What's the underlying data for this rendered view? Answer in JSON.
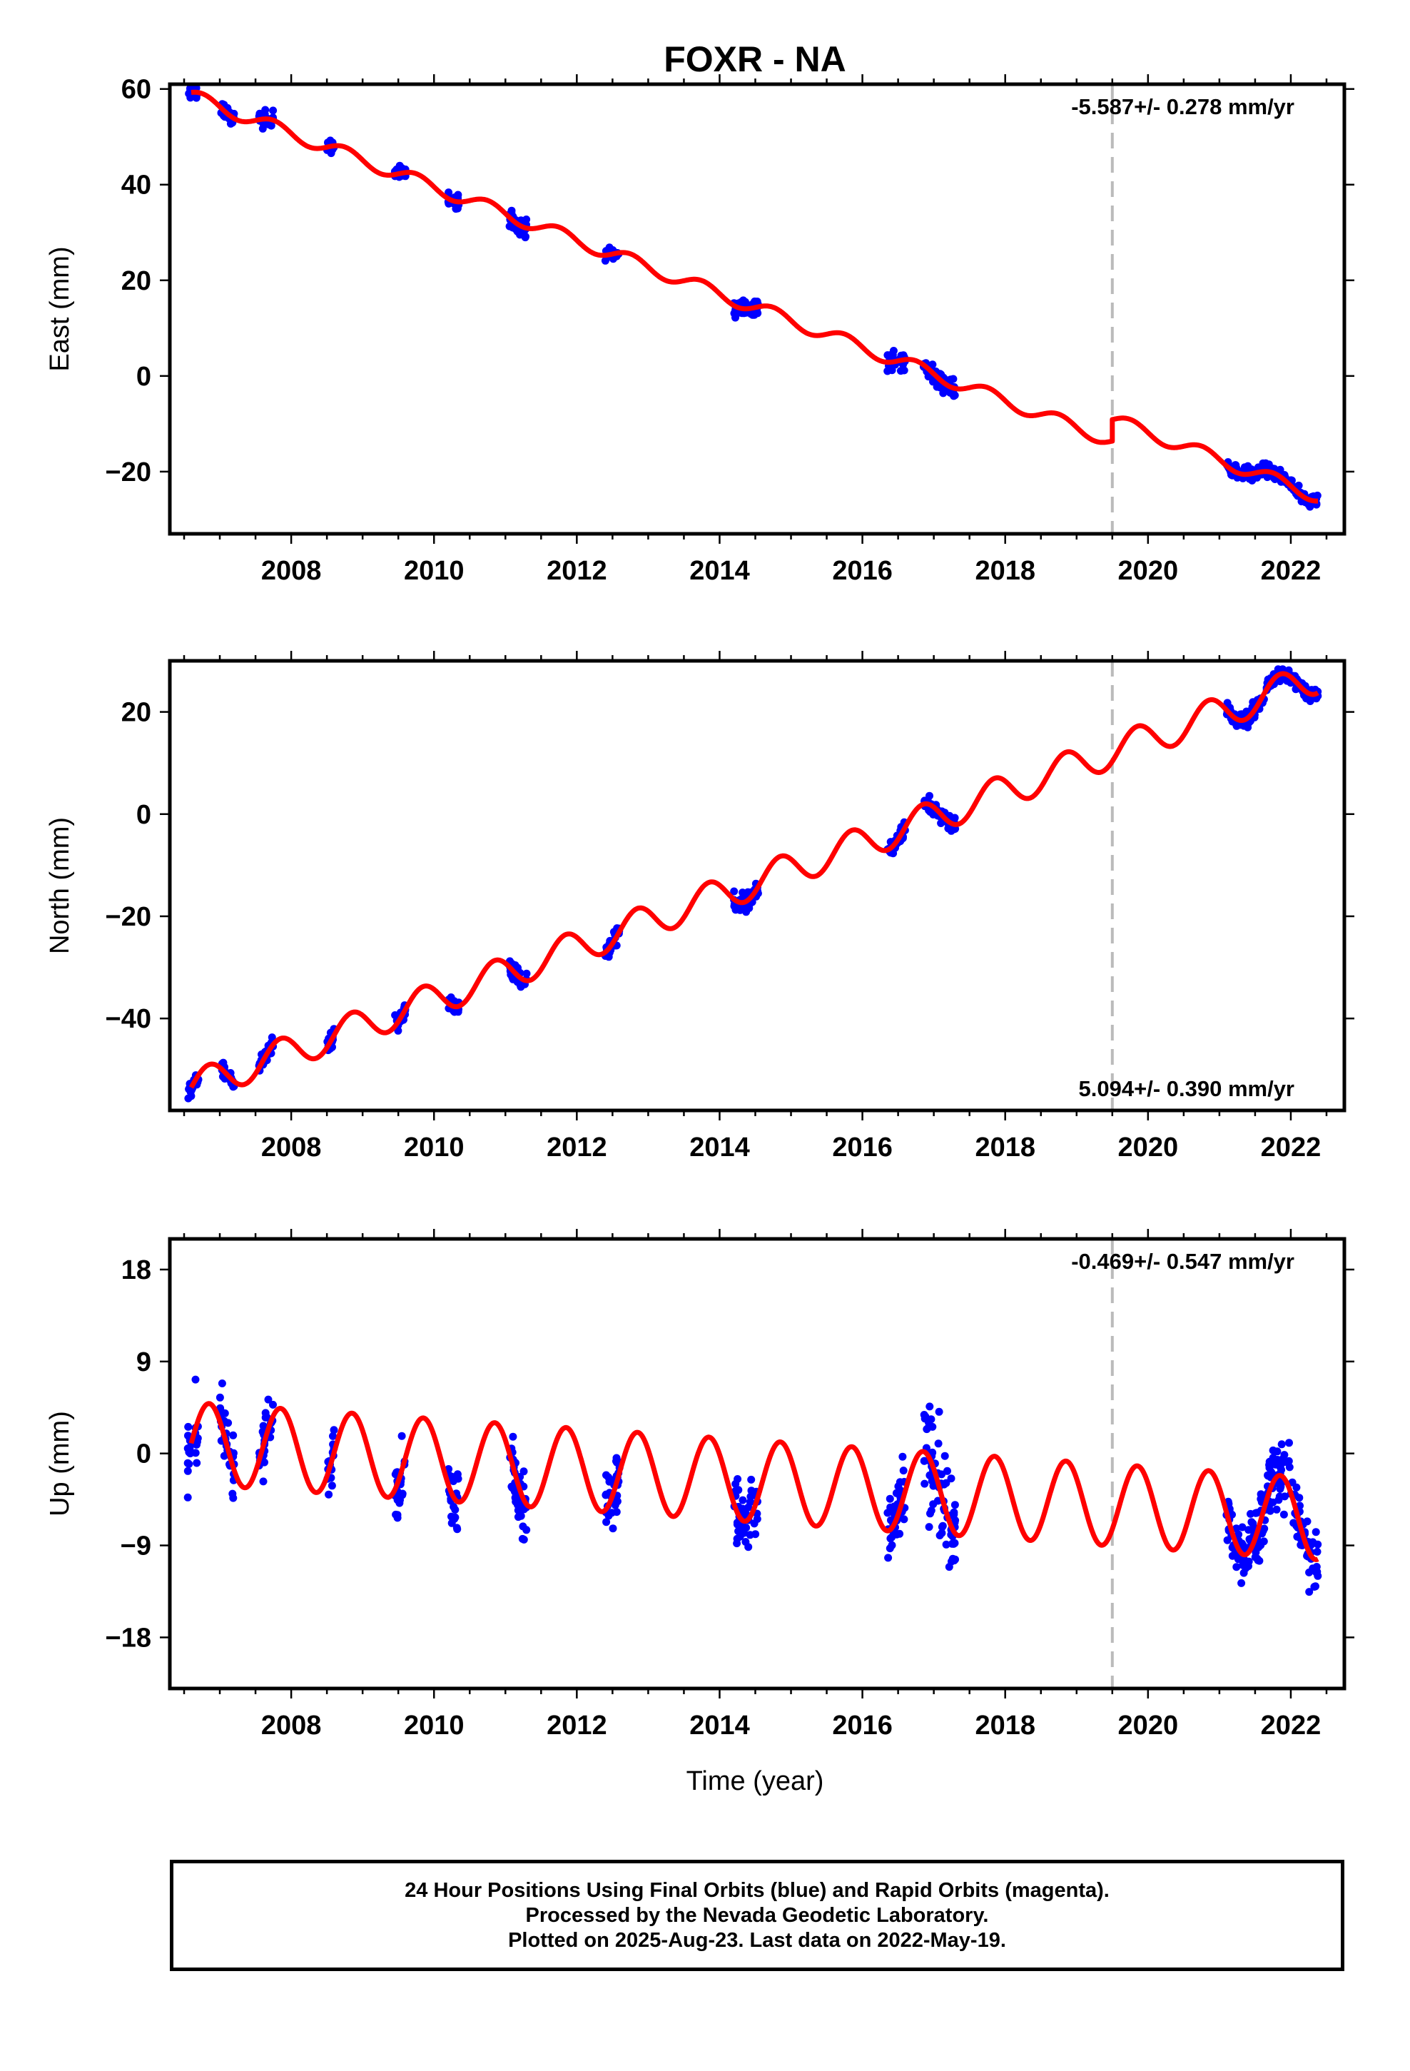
{
  "title": "FOXR - NA",
  "xlabel": "Time (year)",
  "footer": {
    "line1": "24 Hour Positions Using Final Orbits (blue) and Rapid Orbits (magenta).",
    "line2": "Processed by the Nevada Geodetic Laboratory.",
    "line3": "Plotted on 2025-Aug-23. Last data on 2022-May-19."
  },
  "colors": {
    "data": "#0000ff",
    "model": "#ff0000",
    "break_line": "#bbbbbb"
  },
  "chart_data": [
    {
      "type": "scatter",
      "panel": "east",
      "ylabel": "East (mm)",
      "rate_label": "-5.587+/- 0.278 mm/yr",
      "xlim": [
        2006.3,
        2022.75
      ],
      "ylim": [
        -33,
        61
      ],
      "yticks": [
        -20,
        0,
        20,
        40,
        60
      ],
      "xticks": [
        2008,
        2010,
        2012,
        2014,
        2016,
        2018,
        2020,
        2022
      ],
      "break_year": 2019.5,
      "model": {
        "rate": -5.587,
        "y_at_2006_6": 58.5,
        "annual_amp": 1.4,
        "annual_phase": 0.6,
        "step_at_break": 4.5
      },
      "observation_windows": [
        {
          "start": 2006.55,
          "end": 2006.7,
          "spread": 2.0
        },
        {
          "start": 2007.0,
          "end": 2007.2,
          "spread": 2.0
        },
        {
          "start": 2007.55,
          "end": 2007.75,
          "spread": 2.5
        },
        {
          "start": 2008.5,
          "end": 2008.6,
          "spread": 2.0
        },
        {
          "start": 2009.45,
          "end": 2009.6,
          "spread": 2.0
        },
        {
          "start": 2010.2,
          "end": 2010.35,
          "spread": 2.5
        },
        {
          "start": 2011.05,
          "end": 2011.3,
          "spread": 2.5
        },
        {
          "start": 2012.4,
          "end": 2012.6,
          "spread": 2.0
        },
        {
          "start": 2014.2,
          "end": 2014.55,
          "spread": 3.0
        },
        {
          "start": 2016.35,
          "end": 2016.6,
          "spread": 2.5
        },
        {
          "start": 2016.85,
          "end": 2017.3,
          "spread": 3.0
        },
        {
          "start": 2021.1,
          "end": 2022.38,
          "spread": 2.0
        }
      ]
    },
    {
      "type": "scatter",
      "panel": "north",
      "ylabel": "North (mm)",
      "rate_label": "5.094+/- 0.390 mm/yr",
      "xlim": [
        2006.3,
        2022.75
      ],
      "ylim": [
        -58,
        30
      ],
      "yticks": [
        -40,
        -20,
        0,
        20
      ],
      "xticks": [
        2008,
        2010,
        2012,
        2014,
        2016,
        2018,
        2020,
        2022
      ],
      "break_year": 2019.5,
      "model": {
        "rate": 5.094,
        "y_at_2006_6": -53.5,
        "annual_amp": 3.2,
        "annual_phase": 0.0,
        "step_at_break": 0.0
      },
      "observation_windows": [
        {
          "start": 2006.55,
          "end": 2006.7,
          "spread": 2.5
        },
        {
          "start": 2007.0,
          "end": 2007.2,
          "spread": 2.0
        },
        {
          "start": 2007.55,
          "end": 2007.75,
          "spread": 2.5
        },
        {
          "start": 2008.5,
          "end": 2008.6,
          "spread": 2.0
        },
        {
          "start": 2009.45,
          "end": 2009.6,
          "spread": 2.5
        },
        {
          "start": 2010.2,
          "end": 2010.35,
          "spread": 2.0
        },
        {
          "start": 2011.05,
          "end": 2011.3,
          "spread": 2.5
        },
        {
          "start": 2012.4,
          "end": 2012.6,
          "spread": 2.5
        },
        {
          "start": 2014.2,
          "end": 2014.55,
          "spread": 2.5
        },
        {
          "start": 2016.35,
          "end": 2016.6,
          "spread": 2.5
        },
        {
          "start": 2016.85,
          "end": 2017.3,
          "spread": 2.5
        },
        {
          "start": 2021.1,
          "end": 2022.38,
          "spread": 2.0
        }
      ]
    },
    {
      "type": "scatter",
      "panel": "up",
      "ylabel": "Up (mm)",
      "rate_label": "-0.469+/- 0.547 mm/yr",
      "xlim": [
        2006.3,
        2022.75
      ],
      "ylim": [
        -23,
        21
      ],
      "yticks": [
        -18,
        -9,
        0,
        9,
        18
      ],
      "xticks": [
        2008,
        2010,
        2012,
        2014,
        2016,
        2018,
        2020,
        2022
      ],
      "break_year": 2019.5,
      "model": {
        "rate": -0.469,
        "y_at_2006_6": 1.0,
        "annual_amp": 4.0,
        "annual_phase": 0.0,
        "step_at_break": 0.0
      },
      "observation_windows": [
        {
          "start": 2006.55,
          "end": 2006.7,
          "spread": 5.0
        },
        {
          "start": 2007.0,
          "end": 2007.2,
          "spread": 5.0
        },
        {
          "start": 2007.55,
          "end": 2007.75,
          "spread": 4.0
        },
        {
          "start": 2008.5,
          "end": 2008.6,
          "spread": 4.0
        },
        {
          "start": 2009.45,
          "end": 2009.6,
          "spread": 4.0
        },
        {
          "start": 2010.2,
          "end": 2010.35,
          "spread": 4.5
        },
        {
          "start": 2011.05,
          "end": 2011.3,
          "spread": 5.0
        },
        {
          "start": 2012.4,
          "end": 2012.6,
          "spread": 5.0
        },
        {
          "start": 2014.2,
          "end": 2014.55,
          "spread": 5.0
        },
        {
          "start": 2016.35,
          "end": 2016.6,
          "spread": 5.0
        },
        {
          "start": 2016.85,
          "end": 2017.3,
          "spread": 7.5
        },
        {
          "start": 2021.1,
          "end": 2022.38,
          "spread": 4.5
        }
      ]
    }
  ]
}
